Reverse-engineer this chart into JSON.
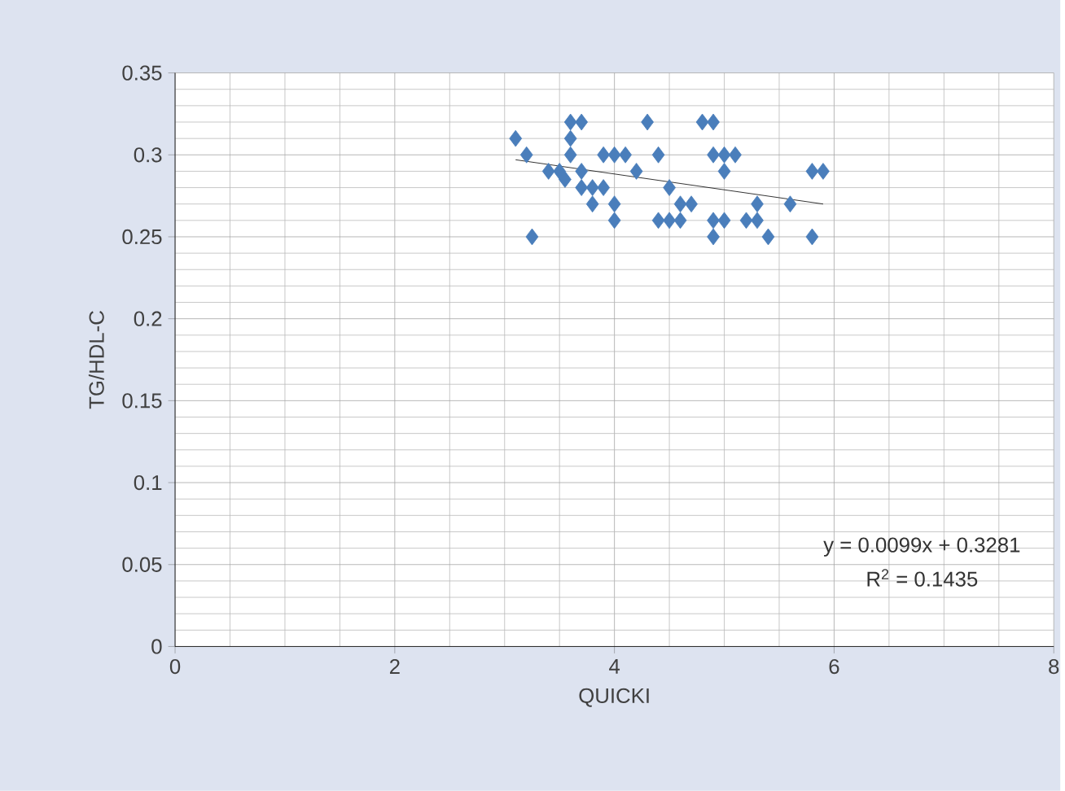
{
  "chart_data": {
    "type": "scatter",
    "xlabel": "QUICKI",
    "ylabel": "TG/HDL-C",
    "xlim": [
      0,
      8
    ],
    "ylim": [
      0,
      0.35
    ],
    "xticks": [
      0,
      2,
      4,
      6,
      8
    ],
    "yticks": [
      0,
      0.05,
      0.1,
      0.15,
      0.2,
      0.25,
      0.3,
      0.35
    ],
    "grid": true,
    "series": [
      {
        "color": "#4a7ebb",
        "marker": "diamond",
        "x": [
          3.1,
          3.2,
          3.25,
          3.6,
          3.7,
          3.5,
          3.6,
          3.6,
          3.7,
          3.8,
          3.8,
          3.9,
          4.0,
          4.0,
          4.0,
          4.1,
          4.3,
          3.9,
          3.7,
          3.55,
          4.4,
          4.4,
          4.5,
          4.6,
          4.6,
          4.7,
          4.8,
          4.9,
          4.9,
          5.0,
          5.0,
          5.1,
          4.9,
          4.9,
          5.0,
          5.2,
          5.3,
          5.4,
          5.6,
          5.8,
          5.9,
          5.8,
          3.4,
          4.2,
          4.5,
          5.3
        ],
        "values": [
          0.31,
          0.3,
          0.25,
          0.32,
          0.32,
          0.29,
          0.31,
          0.3,
          0.29,
          0.28,
          0.27,
          0.3,
          0.3,
          0.27,
          0.26,
          0.3,
          0.32,
          0.28,
          0.28,
          0.285,
          0.3,
          0.26,
          0.28,
          0.27,
          0.26,
          0.27,
          0.32,
          0.32,
          0.3,
          0.29,
          0.3,
          0.3,
          0.25,
          0.26,
          0.26,
          0.26,
          0.27,
          0.25,
          0.27,
          0.29,
          0.29,
          0.25,
          0.29,
          0.29,
          0.26,
          0.26
        ]
      },
      {
        "type": "line",
        "color": "#000000",
        "x": [
          3.1,
          5.9
        ],
        "values": [
          0.297,
          0.27
        ]
      }
    ],
    "annotations": [
      "y = 0.0099x + 0.3281",
      "R$^{2}$ = 0.1435"
    ]
  }
}
